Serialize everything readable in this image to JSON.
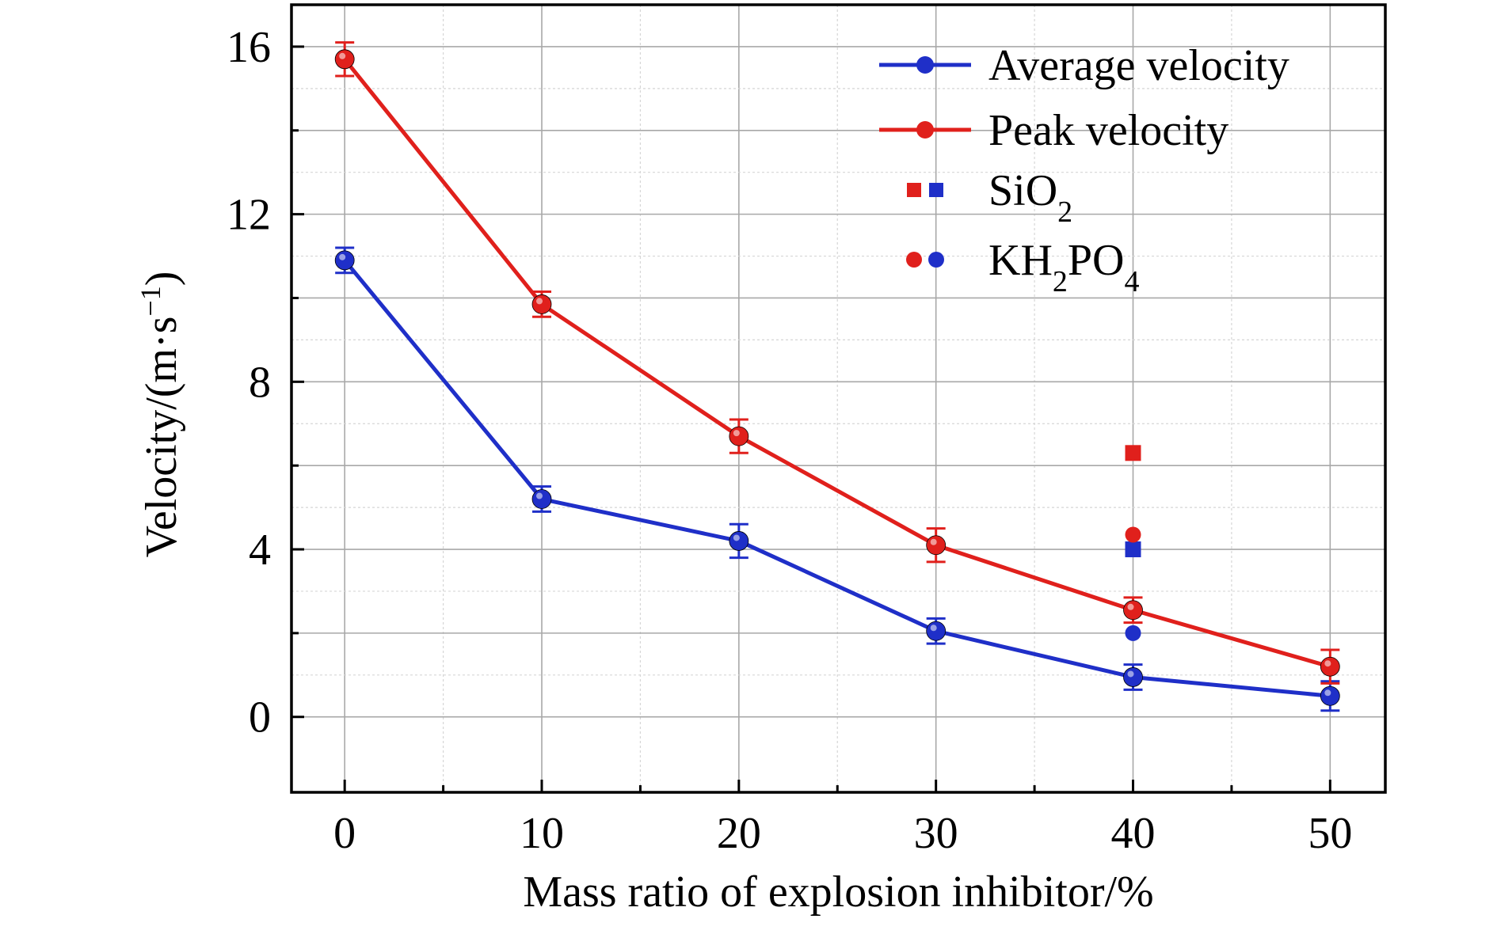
{
  "chart_data": {
    "type": "line",
    "xlabel": "Mass ratio of explosion inhibitor/%",
    "ylabel": "Velocity/(m·s",
    "ylabel_sup": "−1",
    "ylabel_close": ")",
    "xlim": [
      -2.7,
      52.8
    ],
    "ylim": [
      -1.8,
      17.0
    ],
    "x_ticks": [
      0,
      10,
      20,
      30,
      40,
      50
    ],
    "x_tick_labels": [
      "0",
      "10",
      "20",
      "30",
      "40",
      "50"
    ],
    "y_ticks": [
      0,
      4,
      8,
      12,
      16
    ],
    "y_tick_labels": [
      "0",
      "4",
      "8",
      "12",
      "16"
    ],
    "grid": true,
    "legend_position": "top-right",
    "x": [
      0,
      10,
      20,
      30,
      40,
      50
    ],
    "series": [
      {
        "name": "Average velocity",
        "color": "#1f2fc8",
        "values": [
          10.9,
          5.2,
          4.2,
          2.05,
          0.95,
          0.5
        ],
        "errors": [
          0.3,
          0.3,
          0.4,
          0.3,
          0.3,
          0.35
        ]
      },
      {
        "name": "Peak velocity",
        "color": "#e0201c",
        "values": [
          15.7,
          9.85,
          6.7,
          4.1,
          2.55,
          1.2
        ],
        "errors": [
          0.4,
          0.3,
          0.4,
          0.4,
          0.3,
          0.4
        ]
      }
    ],
    "additional_points": [
      {
        "name": "SiO",
        "subscript": "2",
        "marker": "square",
        "x": 40,
        "peak": 6.3,
        "average": 4.0
      },
      {
        "name": "KH",
        "subscript": "2",
        "name_mid": "PO",
        "subscript_end": "4",
        "marker": "circle",
        "x": 40,
        "peak": 4.35,
        "average": 2.0
      }
    ]
  }
}
